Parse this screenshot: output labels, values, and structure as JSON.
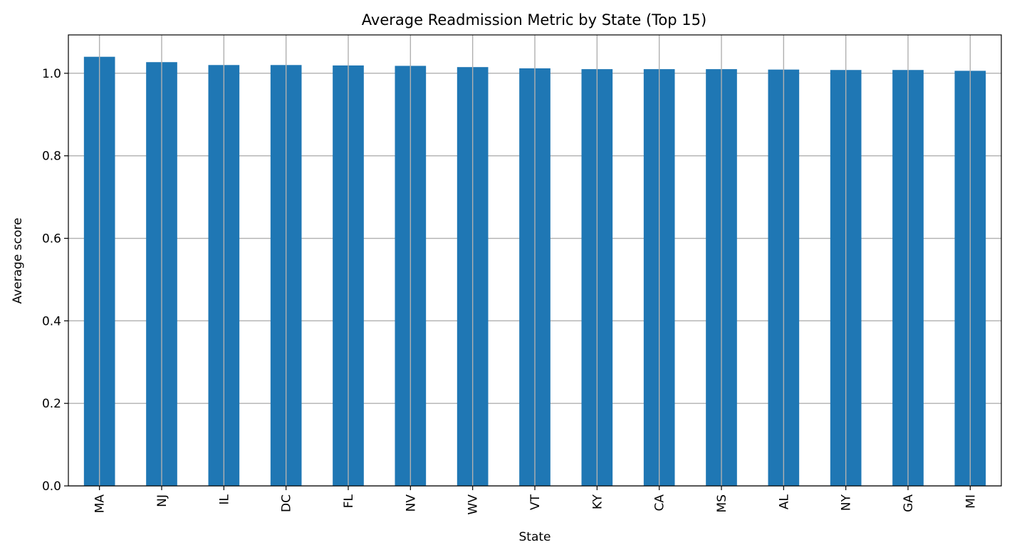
{
  "chart_data": {
    "type": "bar",
    "title": "Average Readmission Metric by State (Top 15)",
    "xlabel": "State",
    "ylabel": "Average score",
    "categories": [
      "MA",
      "NJ",
      "IL",
      "DC",
      "FL",
      "NV",
      "WV",
      "VT",
      "KY",
      "CA",
      "MS",
      "AL",
      "NY",
      "GA",
      "MI"
    ],
    "values": [
      1.04,
      1.027,
      1.02,
      1.02,
      1.019,
      1.018,
      1.015,
      1.012,
      1.01,
      1.01,
      1.01,
      1.009,
      1.008,
      1.008,
      1.006
    ],
    "ylim": [
      0,
      1.093
    ],
    "yticks": [
      0.0,
      0.2,
      0.4,
      0.6,
      0.8,
      1.0
    ],
    "ytick_labels": [
      "0.0",
      "0.2",
      "0.4",
      "0.6",
      "0.8",
      "1.0"
    ],
    "grid": true,
    "legend": "none",
    "bar_color": "#1f77b4",
    "grid_color": "#b0b0b0"
  }
}
